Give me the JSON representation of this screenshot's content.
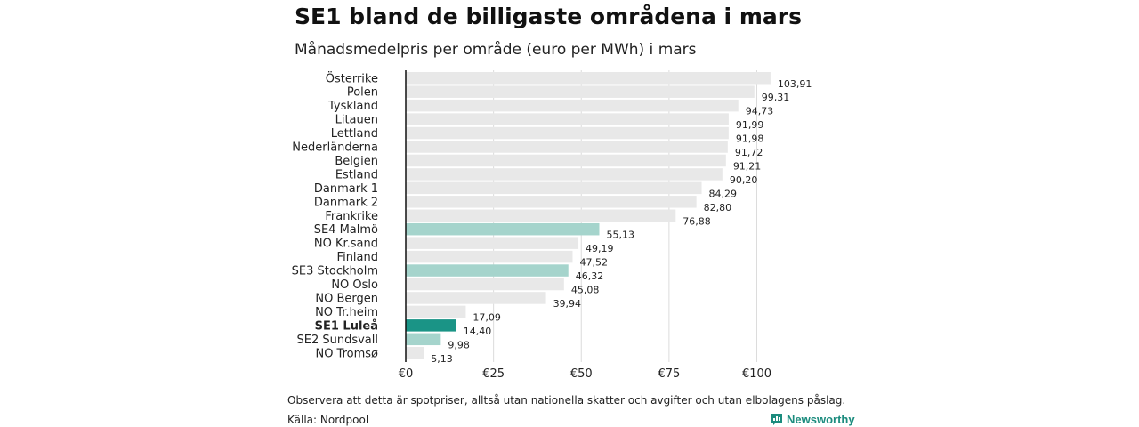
{
  "header": {
    "title": "SE1 bland de billigaste områdena i mars",
    "subtitle": "Månadsmedelpris per område (euro per MWh) i mars"
  },
  "chart_data": {
    "type": "bar",
    "orientation": "horizontal",
    "categories": [
      "Österrike",
      "Polen",
      "Tyskland",
      "Litauen",
      "Lettland",
      "Nederländerna",
      "Belgien",
      "Estland",
      "Danmark  1",
      "Danmark  2",
      "Frankrike",
      "SE4  Malmö",
      "NO Kr.sand",
      "Finland",
      "SE3  Stockholm",
      "NO Oslo",
      "NO Bergen",
      "NO Tr.heim",
      "SE1 Luleå",
      "SE2  Sundsvall",
      "NO Tromsø"
    ],
    "values": [
      103.91,
      99.31,
      94.73,
      91.99,
      91.98,
      91.72,
      91.21,
      90.2,
      84.29,
      82.8,
      76.88,
      55.13,
      49.19,
      47.52,
      46.32,
      45.08,
      39.94,
      17.09,
      14.4,
      9.98,
      5.13
    ],
    "value_labels": [
      "103,91",
      "99,31",
      "94,73",
      "91,99",
      "91,98",
      "91,72",
      "91,21",
      "90,20",
      "84,29",
      "82,80",
      "76,88",
      "55,13",
      "49,19",
      "47,52",
      "46,32",
      "45,08",
      "39,94",
      "17,09",
      "14,40",
      "9,98",
      "5,13"
    ],
    "xlim": [
      0,
      105
    ],
    "x_ticks": [
      0,
      25,
      50,
      75,
      100
    ],
    "x_tick_labels": [
      "€0",
      "€25",
      "€50",
      "€75",
      "€100"
    ],
    "grid": true,
    "colors": {
      "default": "#e8e8e8",
      "se_region": "#a5d4cc",
      "highlight": "#1a9486"
    },
    "bar_colors": [
      "#e8e8e8",
      "#e8e8e8",
      "#e8e8e8",
      "#e8e8e8",
      "#e8e8e8",
      "#e8e8e8",
      "#e8e8e8",
      "#e8e8e8",
      "#e8e8e8",
      "#e8e8e8",
      "#e8e8e8",
      "#a5d4cc",
      "#e8e8e8",
      "#e8e8e8",
      "#a5d4cc",
      "#e8e8e8",
      "#e8e8e8",
      "#e8e8e8",
      "#1a9486",
      "#a5d4cc",
      "#e8e8e8"
    ],
    "bold_categories": [
      "SE1 Luleå"
    ]
  },
  "footer": {
    "note": "Observera att detta är spotpriser, alltså utan nationella skatter och avgifter och utan elbolagens påslag.",
    "source": "Källa: Nordpool",
    "brand": "Newsworthy",
    "brand_color": "#1c8c7e"
  }
}
